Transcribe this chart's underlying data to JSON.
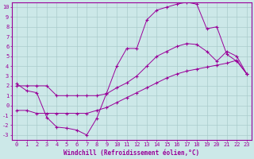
{
  "background_color": "#cce8e8",
  "grid_color": "#aacccc",
  "line_color": "#990099",
  "marker_color": "#990099",
  "xlabel": "Windchill (Refroidissement éolien,°C)",
  "xlim": [
    -0.5,
    23.5
  ],
  "ylim": [
    -3.5,
    10.5
  ],
  "xticks": [
    0,
    1,
    2,
    3,
    4,
    5,
    6,
    7,
    8,
    9,
    10,
    11,
    12,
    13,
    14,
    15,
    16,
    17,
    18,
    19,
    20,
    21,
    22,
    23
  ],
  "yticks": [
    -3,
    -2,
    -1,
    0,
    1,
    2,
    3,
    4,
    5,
    6,
    7,
    8,
    9,
    10
  ],
  "line1_x": [
    0,
    1,
    2,
    3,
    4,
    5,
    6,
    7,
    8,
    9,
    10,
    11,
    12,
    13,
    14,
    15,
    16,
    17,
    18,
    19,
    20,
    21,
    22,
    23
  ],
  "line1_y": [
    2.2,
    1.5,
    1.3,
    -1.2,
    -2.2,
    -2.3,
    -2.5,
    -3.0,
    -1.3,
    1.3,
    4.0,
    5.8,
    5.8,
    8.7,
    9.7,
    10.0,
    10.3,
    10.5,
    10.3,
    7.8,
    8.0,
    5.2,
    4.5,
    3.2
  ],
  "line2_x": [
    0,
    1,
    2,
    3,
    4,
    5,
    6,
    7,
    8,
    9,
    10,
    11,
    12,
    13,
    14,
    15,
    16,
    17,
    18,
    19,
    20,
    21,
    22,
    23
  ],
  "line2_y": [
    2.0,
    2.0,
    2.0,
    2.0,
    1.0,
    1.0,
    1.0,
    1.0,
    1.0,
    1.2,
    1.8,
    2.3,
    3.0,
    4.0,
    5.0,
    5.5,
    6.0,
    6.3,
    6.2,
    5.5,
    4.5,
    5.5,
    5.0,
    3.2
  ],
  "line3_x": [
    0,
    1,
    2,
    3,
    4,
    5,
    6,
    7,
    8,
    9,
    10,
    11,
    12,
    13,
    14,
    15,
    16,
    17,
    18,
    19,
    20,
    21,
    22,
    23
  ],
  "line3_y": [
    -0.5,
    -0.5,
    -0.8,
    -0.8,
    -0.8,
    -0.8,
    -0.8,
    -0.8,
    -0.5,
    -0.2,
    0.3,
    0.8,
    1.3,
    1.8,
    2.3,
    2.8,
    3.2,
    3.5,
    3.7,
    3.9,
    4.1,
    4.3,
    4.6,
    3.2
  ],
  "font_family": "monospace",
  "tick_fontsize": 5.0,
  "label_fontsize": 5.5
}
